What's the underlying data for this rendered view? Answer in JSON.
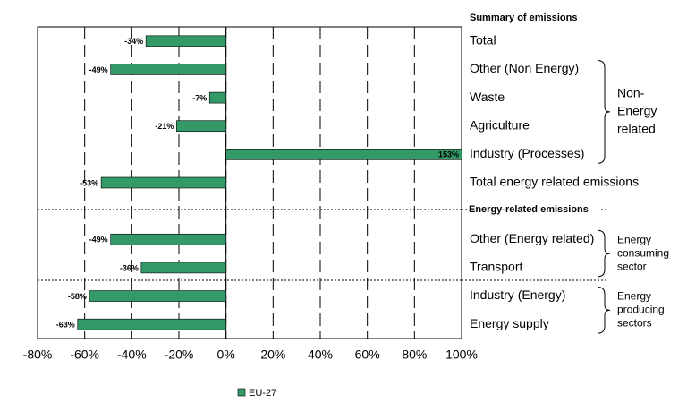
{
  "chart_data": {
    "type": "hbar",
    "section_headers": [
      "Summary of emissions",
      "Energy-related emissions"
    ],
    "categories": [
      "Total",
      "Other (Non Energy)",
      "Waste",
      "Agriculture",
      "Industry (Processes)",
      "Total energy related emissions",
      null,
      "Other (Energy related)",
      "Transport",
      "Industry (Energy)",
      "Energy supply"
    ],
    "series": [
      {
        "name": "EU-27",
        "color": "#339966",
        "values": [
          -34,
          -49,
          -7,
          -21,
          153,
          -53,
          null,
          -49,
          -36,
          -58,
          -63
        ],
        "value_labels": [
          "-34%",
          "-49%",
          "-7%",
          "-21%",
          "153%",
          "-53%",
          null,
          "-49%",
          "-36%",
          "-58%",
          "-63%"
        ]
      }
    ],
    "groups": [
      {
        "lines": [
          "Non-",
          "Energy",
          "related"
        ]
      },
      {
        "lines": [
          "Energy",
          "consuming",
          "sector"
        ]
      },
      {
        "lines": [
          "Energy",
          "producing",
          "sectors"
        ]
      }
    ],
    "xlim": [
      -80,
      100
    ],
    "xticks": [
      {
        "value": -80,
        "label": "-80%"
      },
      {
        "value": -60,
        "label": "-60%"
      },
      {
        "value": -40,
        "label": "-40%"
      },
      {
        "value": -20,
        "label": "-20%"
      },
      {
        "value": 0,
        "label": "0%"
      },
      {
        "value": 20,
        "label": "20%"
      },
      {
        "value": 40,
        "label": "40%"
      },
      {
        "value": 60,
        "label": "60%"
      },
      {
        "value": 80,
        "label": "80%"
      },
      {
        "value": 100,
        "label": "100%"
      }
    ],
    "grid": true
  }
}
